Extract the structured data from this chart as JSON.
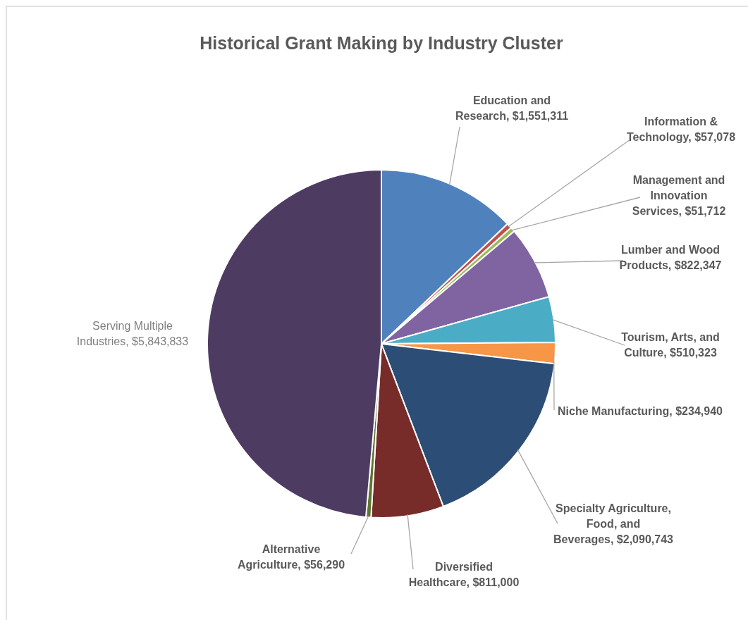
{
  "chart_data": {
    "type": "pie",
    "title": "Historical Grant Making by Industry Cluster",
    "categories": [
      "Education and Research",
      "Information & Technology",
      "Management and Innovation Services",
      "Lumber and Wood Products",
      "Tourism, Arts, and Culture",
      "Niche Manufacturing",
      "Specialty Agriculture, Food, and Beverages",
      "Diversified Healthcare",
      "Alternative Agriculture",
      "Serving Multiple Industries"
    ],
    "values": [
      1551311,
      57078,
      51712,
      822347,
      510323,
      234940,
      2090743,
      811000,
      56290,
      5843833
    ],
    "value_labels": [
      "$1,551,311",
      "$57,078",
      "$51,712",
      "$822,347",
      "$510,323",
      "$234,940",
      "$2,090,743",
      "$811,000",
      "$56,290",
      "$5,843,833"
    ],
    "colors": [
      "#4f81bd",
      "#c0504d",
      "#9bbb59",
      "#8064a2",
      "#4bacc6",
      "#f79646",
      "#2c4d75",
      "#772c2a",
      "#5f7530",
      "#4d3b62"
    ]
  }
}
